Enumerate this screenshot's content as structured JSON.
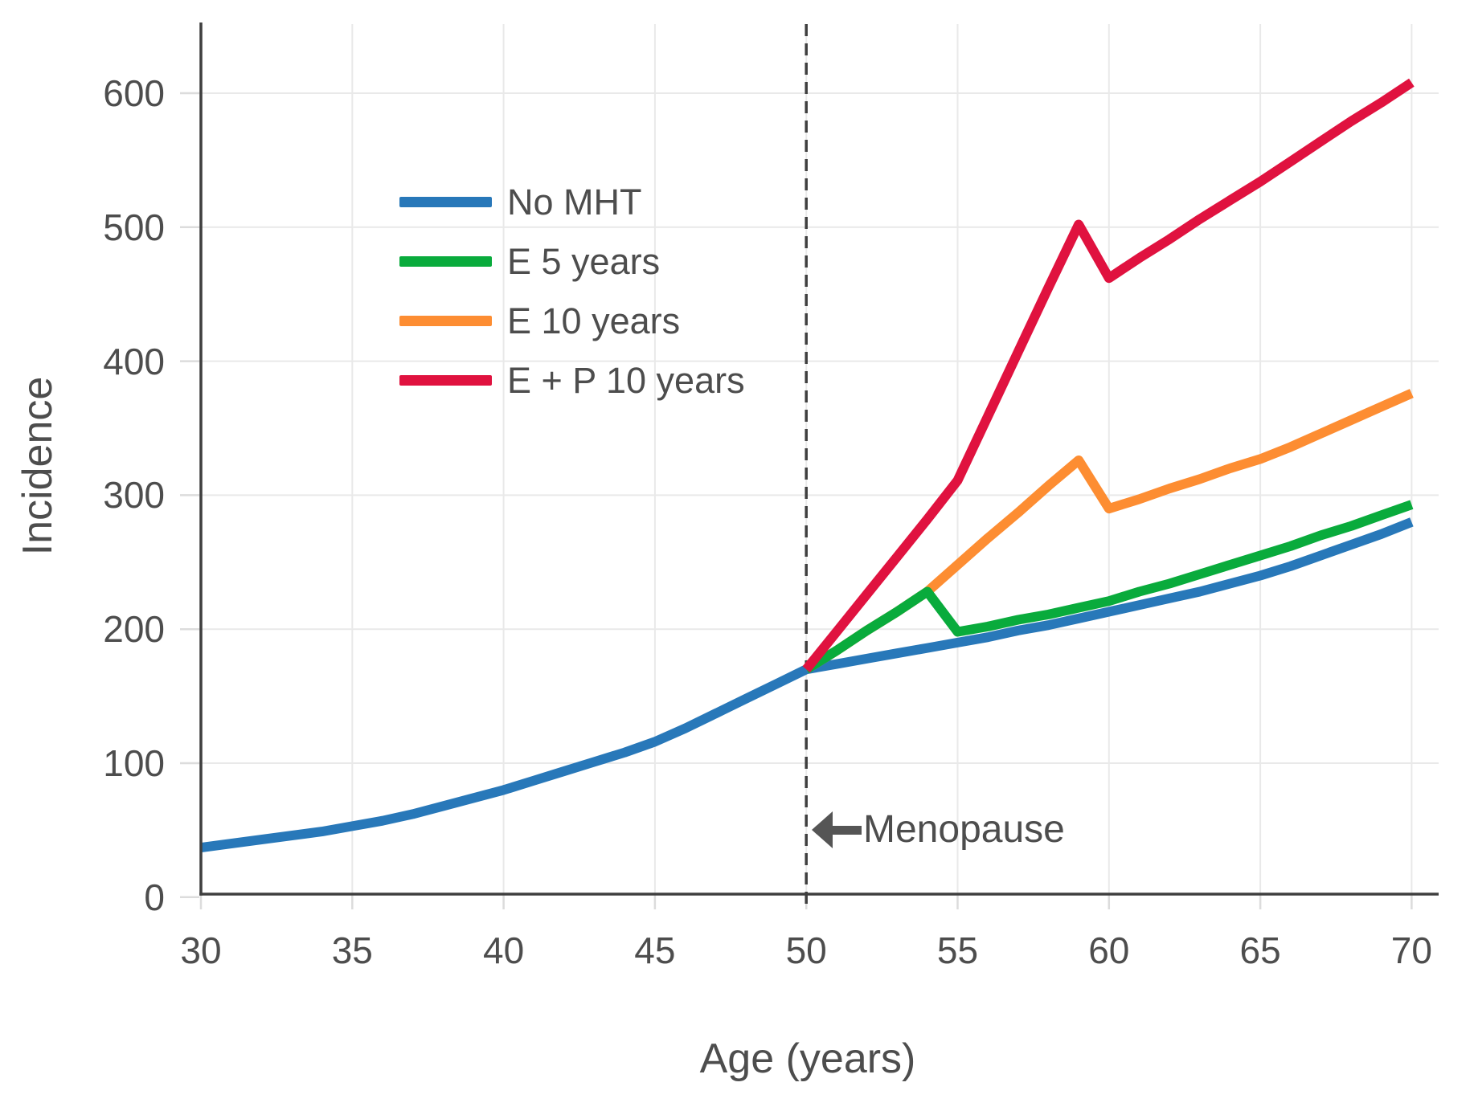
{
  "chart_data": {
    "type": "line",
    "title": "",
    "xlabel": "Age (years)",
    "ylabel": "Incidence",
    "xlim": [
      30,
      70
    ],
    "ylim": [
      0,
      650
    ],
    "xticks": [
      30,
      35,
      40,
      45,
      50,
      55,
      60,
      65,
      70
    ],
    "yticks": [
      0,
      100,
      200,
      300,
      400,
      500,
      600
    ],
    "grid": "on",
    "legend_position": "upper-left-inside",
    "annotation": {
      "label": "Menopause",
      "x": 50,
      "arrow_direction": "left"
    },
    "reference_line": {
      "x": 50,
      "style": "dashed",
      "color": "#3f3f3f"
    },
    "series": [
      {
        "name": "No MHT",
        "color": "#2878b9",
        "x": [
          30,
          31,
          32,
          33,
          34,
          35,
          36,
          37,
          38,
          39,
          40,
          41,
          42,
          43,
          44,
          45,
          46,
          47,
          48,
          49,
          50,
          51,
          52,
          53,
          54,
          55,
          56,
          57,
          58,
          59,
          60,
          61,
          62,
          63,
          64,
          65,
          66,
          67,
          68,
          69,
          70
        ],
        "values": [
          37,
          40,
          43,
          46,
          49,
          53,
          57,
          62,
          68,
          74,
          80,
          87,
          94,
          101,
          108,
          116,
          126,
          137,
          148,
          159,
          170,
          174,
          178,
          182,
          186,
          190,
          194,
          199,
          203,
          208,
          213,
          218,
          223,
          228,
          234,
          240,
          247,
          255,
          263,
          271,
          280
        ]
      },
      {
        "name": "E 5 years",
        "color": "#09ab3c",
        "x": [
          50,
          51,
          52,
          53,
          54,
          55,
          56,
          57,
          58,
          59,
          60,
          61,
          62,
          63,
          64,
          65,
          66,
          67,
          68,
          69,
          70
        ],
        "values": [
          170,
          184,
          199,
          213,
          228,
          198,
          202,
          207,
          211,
          216,
          221,
          228,
          234,
          241,
          248,
          255,
          262,
          270,
          277,
          285,
          293
        ]
      },
      {
        "name": "E 10 years",
        "color": "#fd8d32",
        "x": [
          50,
          51,
          52,
          53,
          54,
          55,
          56,
          57,
          58,
          59,
          60,
          61,
          62,
          63,
          64,
          65,
          66,
          67,
          68,
          69,
          70
        ],
        "values": [
          170,
          184,
          199,
          213,
          228,
          248,
          268,
          287,
          307,
          326,
          290,
          297,
          305,
          312,
          320,
          327,
          336,
          346,
          356,
          366,
          376
        ]
      },
      {
        "name": "E + P 10 years",
        "color": "#e0123f",
        "x": [
          50,
          51,
          52,
          53,
          54,
          55,
          56,
          57,
          58,
          59,
          60,
          61,
          62,
          63,
          64,
          65,
          66,
          67,
          68,
          69,
          70
        ],
        "values": [
          170,
          198,
          226,
          254,
          282,
          311,
          359,
          407,
          455,
          502,
          462,
          477,
          491,
          506,
          520,
          534,
          549,
          564,
          579,
          593,
          608
        ]
      }
    ]
  },
  "colors": {
    "text": "#4d4d4d",
    "spine": "#3f3f3f",
    "grid": "#e9e9e9",
    "tick": "#dcdcdc",
    "arrow": "#555555",
    "background": "#ffffff"
  }
}
